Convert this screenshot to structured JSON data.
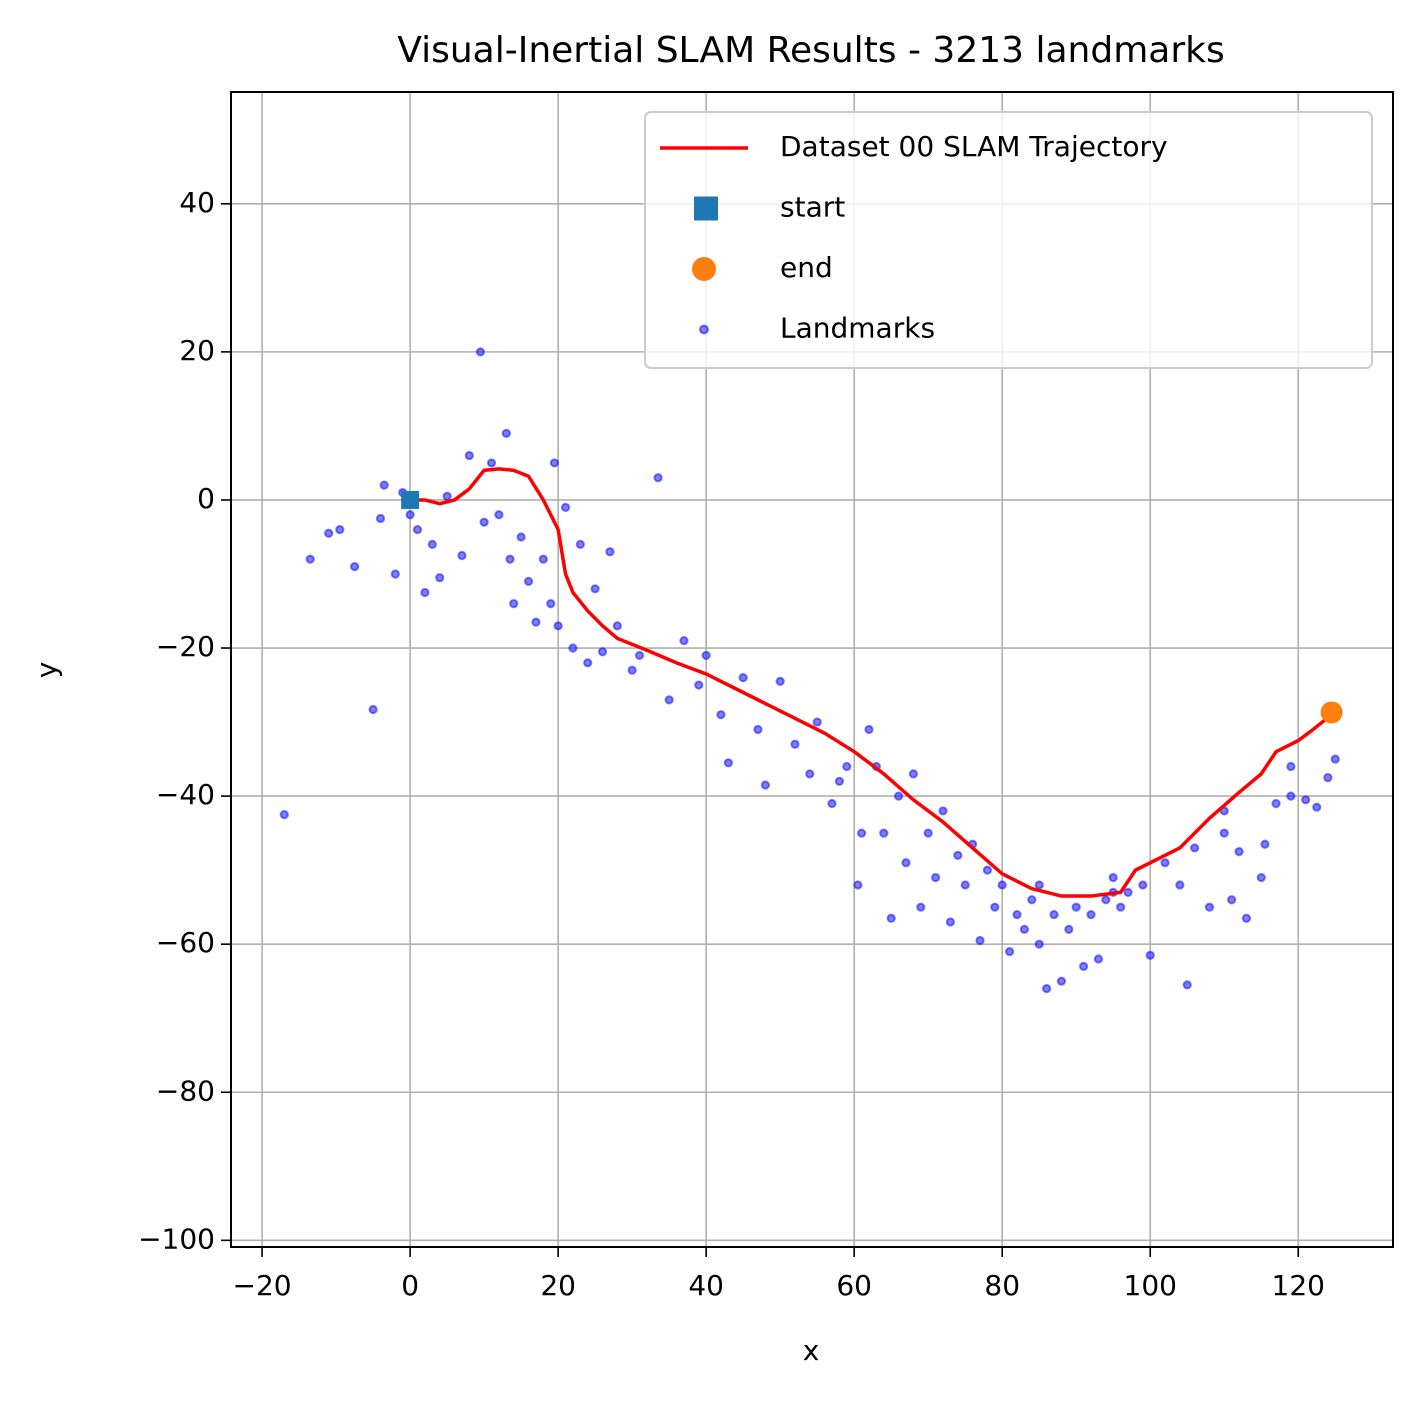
{
  "chart_data": {
    "type": "scatter",
    "title": "Visual-Inertial SLAM Results - 3213 landmarks",
    "xlabel": "x",
    "ylabel": "y",
    "xlim": [
      -24.2,
      132.8
    ],
    "ylim": [
      -100.9,
      55.1
    ],
    "xticks": [
      {
        "value": -20,
        "label": "−20"
      },
      0,
      20,
      40,
      60,
      80,
      100,
      120
    ],
    "yticks": [
      {
        "value": -100,
        "label": "−100"
      },
      {
        "value": -80,
        "label": "−80"
      },
      {
        "value": -60,
        "label": "−60"
      },
      {
        "value": -40,
        "label": "−40"
      },
      {
        "value": -20,
        "label": "−20"
      },
      0,
      20,
      40
    ],
    "grid": true,
    "legend": "upper right",
    "series": [
      {
        "name": "Dataset 00 SLAM Trajectory",
        "type": "line",
        "color": "#ff0000",
        "x": [
          0,
          2,
          4,
          6,
          8,
          10,
          12,
          14,
          16,
          18,
          20,
          21,
          22,
          24,
          26,
          28,
          32,
          36,
          40,
          44,
          48,
          52,
          56,
          60,
          64,
          68,
          72,
          76,
          80,
          84,
          88,
          92,
          96,
          98,
          104,
          108,
          112,
          115,
          117,
          120,
          122,
          124.5
        ],
        "values": [
          0,
          0,
          -0.5,
          0,
          1.5,
          4,
          4.2,
          4,
          3.2,
          0,
          -4,
          -10,
          -12.5,
          -15,
          -17,
          -18.7,
          -20.3,
          -22,
          -23.5,
          -25.5,
          -27.5,
          -29.5,
          -31.5,
          -34,
          -37,
          -40.5,
          -43.5,
          -47,
          -50.5,
          -52.5,
          -53.5,
          -53.5,
          -53,
          -50,
          -47,
          -43,
          -39.5,
          -37,
          -34,
          -32.5,
          -31,
          -29
        ]
      },
      {
        "name": "start",
        "type": "scatter",
        "marker": "square",
        "color": "#1f77b4",
        "x": [
          0
        ],
        "values": [
          0
        ]
      },
      {
        "name": "end",
        "type": "scatter",
        "marker": "circle",
        "color": "#ff7f0e",
        "x": [
          124.5
        ],
        "values": [
          -28.7
        ]
      },
      {
        "name": "Landmarks",
        "type": "scatter",
        "marker": "point",
        "color": "#0000ff",
        "x": [
          -17,
          -13.5,
          -11,
          -9.5,
          -7.5,
          -5,
          -4,
          -3.5,
          -2,
          -1,
          0,
          1,
          2,
          3,
          4,
          5,
          7,
          8,
          9.5,
          10,
          11,
          12,
          13,
          13.5,
          14,
          15,
          16,
          17,
          18,
          19,
          19.5,
          20,
          21,
          22,
          23,
          24,
          25,
          26,
          27,
          28,
          30,
          31,
          33.5,
          35,
          37,
          39,
          40,
          42,
          43,
          45,
          47,
          48,
          50,
          52,
          54,
          55,
          57,
          58,
          59,
          60.5,
          61,
          62,
          63,
          64,
          65,
          66,
          67,
          68,
          69,
          70,
          71,
          72,
          73,
          74,
          75,
          76,
          77,
          78,
          79,
          80,
          81,
          82,
          83,
          84,
          85,
          86,
          87,
          88,
          89,
          90,
          91,
          92,
          93,
          94,
          95,
          96,
          97,
          99,
          100,
          102,
          104,
          105,
          106,
          108,
          110,
          111,
          112,
          113,
          115,
          115.5,
          117,
          119,
          121,
          122.5,
          124,
          125,
          119,
          110,
          95,
          85
        ],
        "values": [
          -42.5,
          -8,
          -4.5,
          -4,
          -9,
          -28.3,
          -2.5,
          2,
          -10,
          1,
          -2,
          -4,
          -12.5,
          -6,
          -10.5,
          0.5,
          -7.5,
          6,
          20,
          -3,
          5,
          -2,
          9,
          -8,
          -14,
          -5,
          -11,
          -16.5,
          -8,
          -14,
          5,
          -17,
          -1,
          -20,
          -6,
          -22,
          -12,
          -20.5,
          -7,
          -17,
          -23,
          -21,
          3,
          -27,
          -19,
          -25,
          -21,
          -29,
          -35.5,
          -24,
          -31,
          -38.5,
          -24.5,
          -33,
          -37,
          -30,
          -41,
          -38,
          -36,
          -52,
          -45,
          -31,
          -36,
          -45,
          -56.5,
          -40,
          -49,
          -37,
          -55,
          -45,
          -51,
          -42,
          -57,
          -48,
          -52,
          -46.5,
          -59.5,
          -50,
          -55,
          -52,
          -61,
          -56,
          -58,
          -54,
          -60,
          -66,
          -56,
          -65,
          -58,
          -55,
          -63,
          -56,
          -62,
          -54,
          -51,
          -55,
          -53,
          -52,
          -61.5,
          -49,
          -52,
          -65.5,
          -47,
          -55,
          -45,
          -54,
          -47.5,
          -56.5,
          -51,
          -46.5,
          -41,
          -40,
          -40.5,
          -41.5,
          -37.5,
          -35,
          -36,
          -42,
          -53,
          -52
        ]
      }
    ]
  }
}
